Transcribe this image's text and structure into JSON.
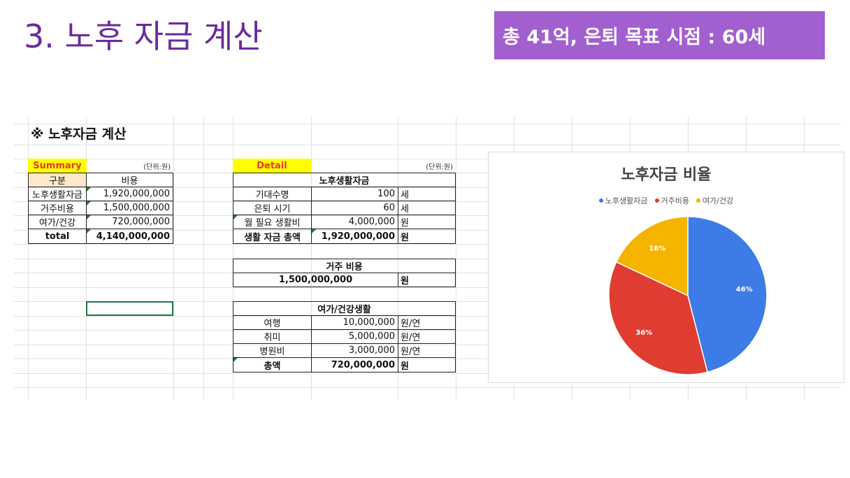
{
  "slide": {
    "title": "3. 노후 자금 계산",
    "banner": "총 41억, 은퇴 목표 시점  : 60세"
  },
  "sheet": {
    "section_title": "※ 노후자금 계산",
    "summary": {
      "tag": "Summary",
      "unit": "(단위:원)",
      "headers": [
        "구분",
        "비용"
      ],
      "rows": [
        {
          "label": "노후생활자금",
          "value": "1,920,000,000"
        },
        {
          "label": "거주비용",
          "value": "1,500,000,000"
        },
        {
          "label": "여가/건강",
          "value": "720,000,000"
        },
        {
          "label": "total",
          "value": "4,140,000,000"
        }
      ]
    },
    "detail": {
      "tag": "Detail",
      "unit": "(단위:원)",
      "living": {
        "header": "노후생활자금",
        "rows": [
          {
            "label": "기대수명",
            "value": "100",
            "unit": "세"
          },
          {
            "label": "은퇴 시기",
            "value": "60",
            "unit": "세"
          },
          {
            "label": "월 필요 생활비",
            "value": "4,000,000",
            "unit": "원"
          },
          {
            "label": "생활 자금 총액",
            "value": "1,920,000,000",
            "unit": "원"
          }
        ]
      },
      "housing": {
        "header": "거주 비용",
        "value": "1,500,000,000",
        "unit": "원"
      },
      "leisure": {
        "header": "여가/건강생활",
        "rows": [
          {
            "label": "여행",
            "value": "10,000,000",
            "unit": "원/연"
          },
          {
            "label": "취미",
            "value": "5,000,000",
            "unit": "원/연"
          },
          {
            "label": "병원비",
            "value": "3,000,000",
            "unit": "원/연"
          },
          {
            "label": "총액",
            "value": "720,000,000",
            "unit": "원"
          }
        ]
      }
    }
  },
  "chart_data": {
    "type": "pie",
    "title": "노후자금 비율",
    "categories": [
      "노후생활자금",
      "거주비용",
      "여가/건강"
    ],
    "values": [
      46,
      36,
      18
    ],
    "labels": [
      "46%",
      "36%",
      "18%"
    ],
    "colors": [
      "#3d7be6",
      "#e03c31",
      "#f5b400"
    ],
    "legend_position": "top"
  }
}
